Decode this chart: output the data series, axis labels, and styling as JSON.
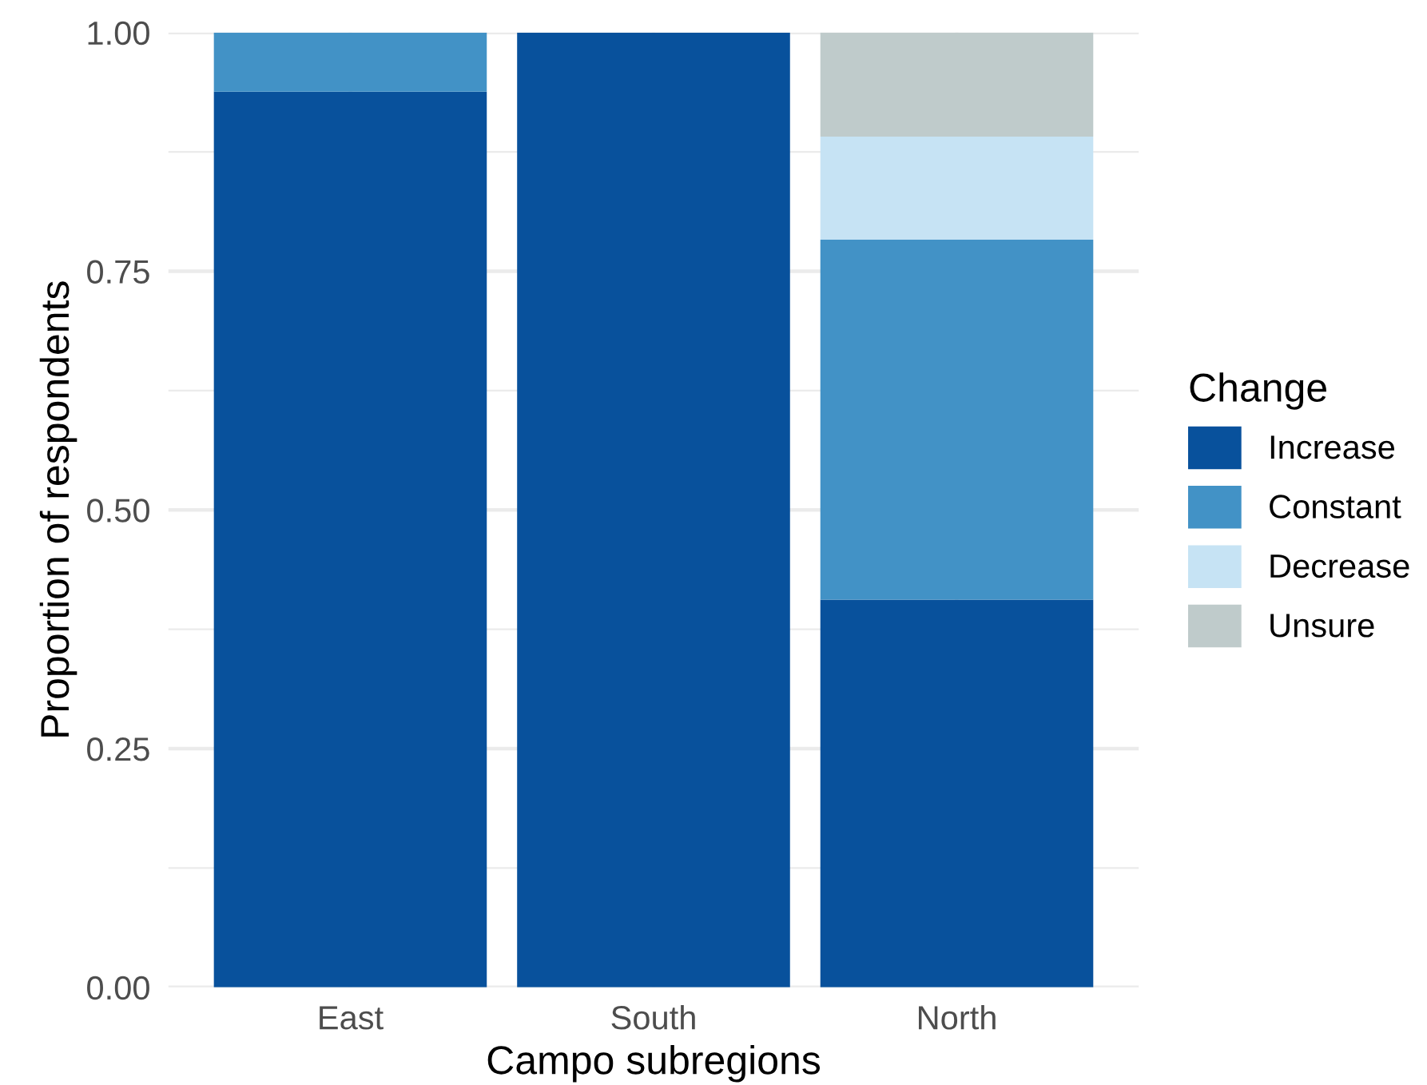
{
  "chart_data": {
    "type": "bar",
    "stacked": true,
    "categories": [
      "East",
      "South",
      "North"
    ],
    "xlabel": "Campo subregions",
    "ylabel": "Proportion of respondents",
    "legend_title": "Change",
    "series": [
      {
        "name": "Increase",
        "color": "#08519c",
        "values": [
          0.938,
          1.0,
          0.406
        ]
      },
      {
        "name": "Constant",
        "color": "#4292c6",
        "values": [
          0.062,
          0,
          0.377
        ]
      },
      {
        "name": "Decrease",
        "color": "#c6e3f4",
        "values": [
          0,
          0,
          0.108
        ]
      },
      {
        "name": "Unsure",
        "color": "#bfcbcb",
        "values": [
          0,
          0,
          0.109
        ]
      }
    ],
    "ylim": [
      0,
      1.0
    ],
    "yticks": [
      {
        "value": 0,
        "label": "0.00"
      },
      {
        "value": 0.125,
        "label": null
      },
      {
        "value": 0.25,
        "label": "0.25"
      },
      {
        "value": 0.375,
        "label": null
      },
      {
        "value": 0.5,
        "label": "0.50"
      },
      {
        "value": 0.625,
        "label": null
      },
      {
        "value": 0.75,
        "label": "0.75"
      },
      {
        "value": 0.875,
        "label": null
      },
      {
        "value": 1.0,
        "label": "1.00"
      }
    ],
    "grid": true,
    "legend": "right"
  }
}
